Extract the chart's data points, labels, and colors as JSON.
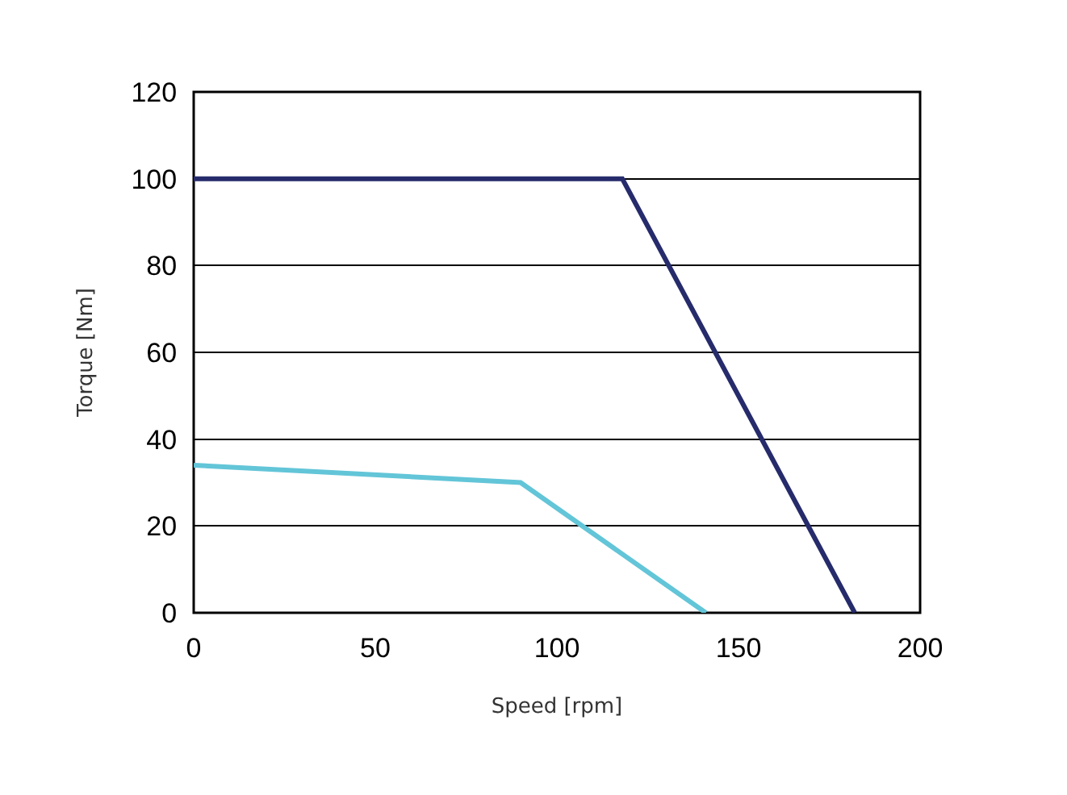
{
  "chart_data": {
    "type": "line",
    "xlabel": "Speed [rpm]",
    "ylabel": "Torque [Nm]",
    "series": [
      {
        "color": "#262b6b",
        "x": [
          0,
          118,
          182
        ],
        "values": [
          100,
          100,
          0
        ]
      },
      {
        "color": "#63c5d8",
        "x": [
          0,
          90,
          141
        ],
        "values": [
          34,
          30,
          0
        ]
      }
    ],
    "xlim": [
      0,
      200
    ],
    "xticks": [
      0,
      50,
      100,
      150,
      200
    ],
    "ylim": [
      0,
      120
    ],
    "yticks": [
      0,
      20,
      40,
      60,
      80,
      100,
      120
    ],
    "grid": "y",
    "marker": "none",
    "line_style": "solid"
  }
}
